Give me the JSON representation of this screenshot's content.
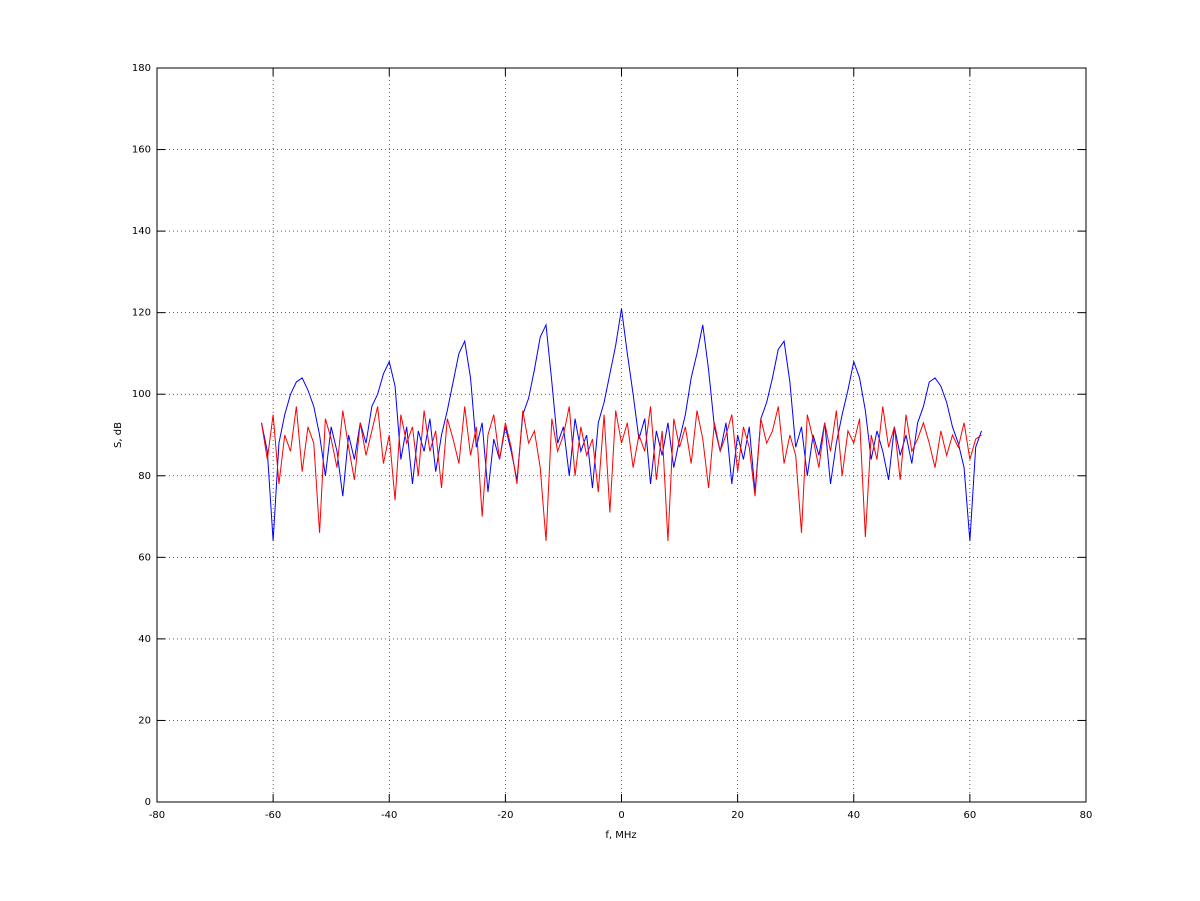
{
  "chart_data": {
    "type": "line",
    "xlabel": "f, MHz",
    "ylabel": "S, dB",
    "x": [
      -62,
      -61,
      -60,
      -59,
      -58,
      -57,
      -56,
      -55,
      -54,
      -53,
      -52,
      -51,
      -50,
      -49,
      -48,
      -47,
      -46,
      -45,
      -44,
      -43,
      -42,
      -41,
      -40,
      -39,
      -38,
      -37,
      -36,
      -35,
      -34,
      -33,
      -32,
      -31,
      -30,
      -29,
      -28,
      -27,
      -26,
      -25,
      -24,
      -23,
      -22,
      -21,
      -20,
      -19,
      -18,
      -17,
      -16,
      -15,
      -14,
      -13,
      -12,
      -11,
      -10,
      -9,
      -8,
      -7,
      -6,
      -5,
      -4,
      -3,
      -2,
      -1,
      0,
      1,
      2,
      3,
      4,
      5,
      6,
      7,
      8,
      9,
      10,
      11,
      12,
      13,
      14,
      15,
      16,
      17,
      18,
      19,
      20,
      21,
      22,
      23,
      24,
      25,
      26,
      27,
      28,
      29,
      30,
      31,
      32,
      33,
      34,
      35,
      36,
      37,
      38,
      39,
      40,
      41,
      42,
      43,
      44,
      45,
      46,
      47,
      48,
      49,
      50,
      51,
      52,
      53,
      54,
      55,
      56,
      57,
      58,
      59,
      60,
      61,
      62
    ],
    "series": [
      {
        "color": "#0000ff",
        "values": [
          93,
          86,
          64,
          88,
          95,
          100,
          103,
          104,
          101,
          97,
          90,
          80,
          92,
          86,
          75,
          90,
          84,
          93,
          88,
          97,
          100,
          105,
          108,
          102,
          84,
          92,
          78,
          91,
          86,
          94,
          81,
          90,
          96,
          103,
          110,
          113,
          104,
          87,
          93,
          76,
          89,
          84,
          92,
          86,
          79,
          95,
          99,
          106,
          114,
          117,
          103,
          88,
          92,
          80,
          94,
          86,
          90,
          77,
          93,
          98,
          105,
          112,
          121,
          110,
          100,
          89,
          94,
          78,
          91,
          85,
          93,
          82,
          89,
          95,
          104,
          110,
          117,
          106,
          92,
          86,
          93,
          78,
          90,
          84,
          92,
          76,
          94,
          98,
          104,
          111,
          113,
          103,
          87,
          92,
          80,
          90,
          85,
          93,
          78,
          88,
          95,
          101,
          108,
          104,
          96,
          84,
          91,
          86,
          79,
          92,
          85,
          90,
          83,
          93,
          97,
          103,
          104,
          102,
          98,
          92,
          88,
          82,
          64,
          87,
          91
        ]
      },
      {
        "color": "#ff0000",
        "values": [
          93,
          84,
          95,
          78,
          90,
          86,
          97,
          81,
          92,
          88,
          66,
          94,
          89,
          82,
          96,
          87,
          79,
          93,
          85,
          91,
          97,
          83,
          90,
          74,
          95,
          88,
          92,
          80,
          96,
          86,
          91,
          77,
          94,
          89,
          83,
          97,
          85,
          92,
          70,
          90,
          95,
          84,
          93,
          87,
          78,
          96,
          88,
          91,
          82,
          64,
          94,
          86,
          90,
          97,
          80,
          92,
          85,
          89,
          76,
          95,
          71,
          96,
          88,
          93,
          82,
          90,
          86,
          97,
          79,
          91,
          64,
          94,
          87,
          92,
          83,
          96,
          89,
          77,
          93,
          86,
          90,
          95,
          81,
          92,
          87,
          75,
          94,
          88,
          91,
          97,
          83,
          90,
          85,
          66,
          95,
          89,
          82,
          93,
          86,
          96,
          80,
          91,
          88,
          94,
          65,
          90,
          84,
          97,
          87,
          92,
          79,
          95,
          86,
          89,
          93,
          88,
          82,
          91,
          85,
          90,
          87,
          93,
          84,
          89,
          90
        ]
      }
    ],
    "xlim": [
      -80,
      80
    ],
    "xticks": [
      -80,
      -60,
      -40,
      -20,
      0,
      20,
      40,
      60,
      80
    ],
    "ylim": [
      0,
      180
    ],
    "yticks": [
      0,
      20,
      40,
      60,
      80,
      100,
      120,
      140,
      160,
      180
    ],
    "grid": true
  }
}
